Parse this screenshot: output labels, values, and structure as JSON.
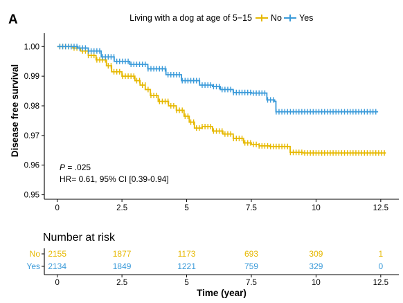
{
  "chart_data": {
    "type": "line",
    "panel_label": "A",
    "legend": {
      "title": "Living with a dog at age of 5−15",
      "position": "top",
      "entries": [
        {
          "name": "No",
          "color": "#E6B800"
        },
        {
          "name": "Yes",
          "color": "#3A9AD9"
        }
      ]
    },
    "ylabel": "Disease free survival",
    "xlabel": "Time (year)",
    "xlim": [
      -0.5,
      13.2
    ],
    "ylim": [
      0.9485,
      1.0045
    ],
    "x_ticks": [
      0,
      2.5,
      5,
      7.5,
      10,
      12.5
    ],
    "x_tick_labels": [
      "0",
      "2.5",
      "5",
      "7.5",
      "10",
      "12.5"
    ],
    "y_ticks": [
      0.95,
      0.96,
      0.97,
      0.98,
      0.99,
      1.0
    ],
    "y_tick_labels": [
      "0.95",
      "0.96",
      "0.97",
      "0.98",
      "0.99",
      "1.00"
    ],
    "annotation": {
      "p_label": "P",
      "p_value": " =  .025",
      "hr_text": "HR= 0.61, 95% CI [0.39-0.94]"
    },
    "series": [
      {
        "name": "No",
        "color": "#E6B800",
        "x": [
          0,
          0.6,
          0.9,
          1.2,
          1.5,
          1.9,
          2.1,
          2.5,
          3.0,
          3.2,
          3.4,
          3.6,
          3.9,
          4.3,
          4.6,
          4.9,
          5.1,
          5.3,
          5.6,
          6.0,
          6.4,
          6.8,
          7.2,
          7.5,
          7.8,
          8.2,
          8.8,
          9.0,
          9.5,
          10.5,
          11.5,
          12.7
        ],
        "y": [
          1.0,
          0.9995,
          0.9985,
          0.997,
          0.9955,
          0.9935,
          0.9915,
          0.99,
          0.9885,
          0.987,
          0.9855,
          0.9835,
          0.9815,
          0.98,
          0.9785,
          0.9765,
          0.9745,
          0.9725,
          0.973,
          0.9715,
          0.9705,
          0.969,
          0.9675,
          0.967,
          0.9665,
          0.9663,
          0.9663,
          0.9643,
          0.9641,
          0.9641,
          0.9641,
          0.9641
        ]
      },
      {
        "name": "Yes",
        "color": "#3A9AD9",
        "x": [
          0,
          0.8,
          1.2,
          1.7,
          2.2,
          2.8,
          3.5,
          4.2,
          4.8,
          5.5,
          6.0,
          6.3,
          6.8,
          7.5,
          8.0,
          8.1,
          8.4,
          8.45,
          9.0,
          10.0,
          11.5,
          12.4
        ],
        "y": [
          1.0,
          0.9995,
          0.9985,
          0.9965,
          0.995,
          0.994,
          0.9925,
          0.9905,
          0.9885,
          0.987,
          0.9865,
          0.9855,
          0.9845,
          0.9843,
          0.9843,
          0.982,
          0.9815,
          0.978,
          0.978,
          0.978,
          0.978,
          0.978
        ]
      }
    ],
    "risk_table": {
      "title": "Number at risk",
      "time_points": [
        0,
        2.5,
        5,
        7.5,
        10,
        12.5
      ],
      "rows": [
        {
          "label": "No",
          "color": "#E6B800",
          "values": [
            "2155",
            "1877",
            "1173",
            "693",
            "309",
            "1"
          ]
        },
        {
          "label": "Yes",
          "color": "#3A9AD9",
          "values": [
            "2134",
            "1849",
            "1221",
            "759",
            "329",
            "0"
          ]
        }
      ]
    }
  }
}
